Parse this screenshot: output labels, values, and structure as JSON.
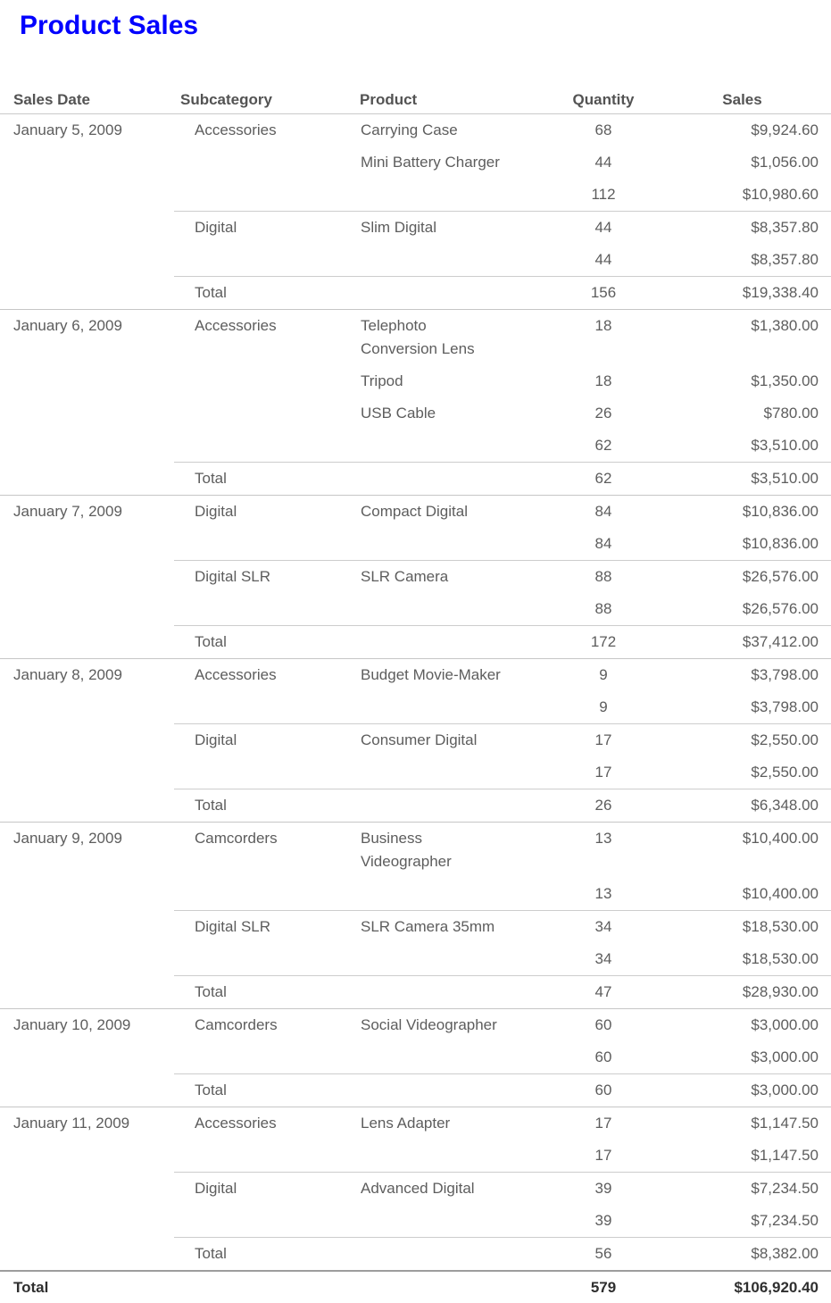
{
  "title": "Product Sales",
  "title_color": "#0101fe",
  "table": {
    "columns": [
      "Sales Date",
      "Subcategory",
      "Product",
      "Quantity",
      "Sales"
    ],
    "groups": [
      {
        "date": "January 5, 2009",
        "subcategories": [
          {
            "name": "Accessories",
            "products": [
              {
                "name": "Carrying Case",
                "quantity": "68",
                "sales": "$9,924.60"
              },
              {
                "name": "Mini Battery Charger",
                "quantity": "44",
                "sales": "$1,056.00"
              }
            ],
            "subtotal": {
              "quantity": "112",
              "sales": "$10,980.60"
            }
          },
          {
            "name": "Digital",
            "products": [
              {
                "name": "Slim Digital",
                "quantity": "44",
                "sales": "$8,357.80"
              }
            ],
            "subtotal": {
              "quantity": "44",
              "sales": "$8,357.80"
            }
          }
        ],
        "total": {
          "label": "Total",
          "quantity": "156",
          "sales": "$19,338.40"
        }
      },
      {
        "date": "January 6, 2009",
        "subcategories": [
          {
            "name": "Accessories",
            "products": [
              {
                "name": "Telephoto\nConversion Lens",
                "quantity": "18",
                "sales": "$1,380.00"
              },
              {
                "name": "Tripod",
                "quantity": "18",
                "sales": "$1,350.00"
              },
              {
                "name": "USB Cable",
                "quantity": "26",
                "sales": "$780.00"
              }
            ],
            "subtotal": {
              "quantity": "62",
              "sales": "$3,510.00"
            }
          }
        ],
        "total": {
          "label": "Total",
          "quantity": "62",
          "sales": "$3,510.00"
        }
      },
      {
        "date": "January 7, 2009",
        "subcategories": [
          {
            "name": "Digital",
            "products": [
              {
                "name": "Compact Digital",
                "quantity": "84",
                "sales": "$10,836.00"
              }
            ],
            "subtotal": {
              "quantity": "84",
              "sales": "$10,836.00"
            }
          },
          {
            "name": "Digital SLR",
            "products": [
              {
                "name": "SLR Camera",
                "quantity": "88",
                "sales": "$26,576.00"
              }
            ],
            "subtotal": {
              "quantity": "88",
              "sales": "$26,576.00"
            }
          }
        ],
        "total": {
          "label": "Total",
          "quantity": "172",
          "sales": "$37,412.00"
        }
      },
      {
        "date": "January 8, 2009",
        "subcategories": [
          {
            "name": "Accessories",
            "products": [
              {
                "name": "Budget Movie-Maker",
                "quantity": "9",
                "sales": "$3,798.00"
              }
            ],
            "subtotal": {
              "quantity": "9",
              "sales": "$3,798.00"
            }
          },
          {
            "name": "Digital",
            "products": [
              {
                "name": "Consumer Digital",
                "quantity": "17",
                "sales": "$2,550.00"
              }
            ],
            "subtotal": {
              "quantity": "17",
              "sales": "$2,550.00"
            }
          }
        ],
        "total": {
          "label": "Total",
          "quantity": "26",
          "sales": "$6,348.00"
        }
      },
      {
        "date": "January 9, 2009",
        "subcategories": [
          {
            "name": "Camcorders",
            "products": [
              {
                "name": "Business\nVideographer",
                "quantity": "13",
                "sales": "$10,400.00"
              }
            ],
            "subtotal": {
              "quantity": "13",
              "sales": "$10,400.00"
            }
          },
          {
            "name": "Digital SLR",
            "products": [
              {
                "name": "SLR Camera 35mm",
                "quantity": "34",
                "sales": "$18,530.00"
              }
            ],
            "subtotal": {
              "quantity": "34",
              "sales": "$18,530.00"
            }
          }
        ],
        "total": {
          "label": "Total",
          "quantity": "47",
          "sales": "$28,930.00"
        }
      },
      {
        "date": "January 10, 2009",
        "subcategories": [
          {
            "name": "Camcorders",
            "products": [
              {
                "name": "Social Videographer",
                "quantity": "60",
                "sales": "$3,000.00"
              }
            ],
            "subtotal": {
              "quantity": "60",
              "sales": "$3,000.00"
            }
          }
        ],
        "total": {
          "label": "Total",
          "quantity": "60",
          "sales": "$3,000.00"
        }
      },
      {
        "date": "January 11, 2009",
        "subcategories": [
          {
            "name": "Accessories",
            "products": [
              {
                "name": "Lens Adapter",
                "quantity": "17",
                "sales": "$1,147.50"
              }
            ],
            "subtotal": {
              "quantity": "17",
              "sales": "$1,147.50"
            }
          },
          {
            "name": "Digital",
            "products": [
              {
                "name": "Advanced Digital",
                "quantity": "39",
                "sales": "$7,234.50"
              }
            ],
            "subtotal": {
              "quantity": "39",
              "sales": "$7,234.50"
            }
          }
        ],
        "total": {
          "label": "Total",
          "quantity": "56",
          "sales": "$8,382.00"
        }
      }
    ],
    "grand_total": {
      "label": "Total",
      "quantity": "579",
      "sales": "$106,920.40"
    }
  }
}
